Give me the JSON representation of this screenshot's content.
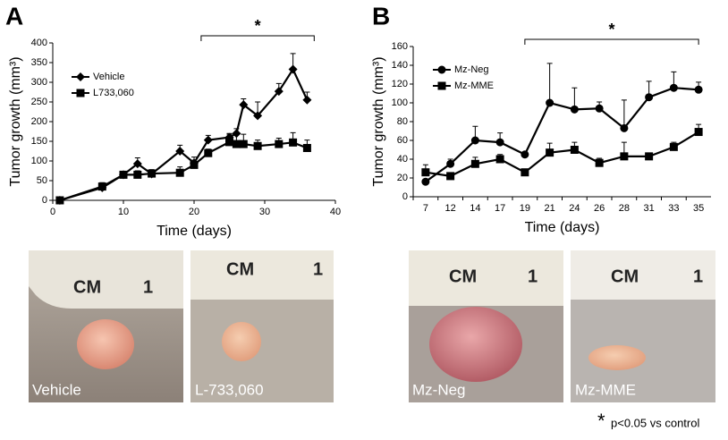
{
  "chart_data": [
    {
      "type": "line",
      "panel": "A",
      "x_label": "Time (days)",
      "y_label": "Tumor growth (mm³)",
      "x": [
        1,
        7,
        10,
        12,
        14,
        18,
        20,
        22,
        25,
        26,
        27,
        29,
        32,
        34,
        36
      ],
      "series": [
        {
          "name": "Vehicle",
          "color": "#000000",
          "marker": "diamond",
          "values": [
            0,
            32,
            65,
            93,
            67,
            125,
            95,
            153,
            160,
            170,
            243,
            215,
            277,
            333,
            255
          ],
          "errors": [
            0,
            10,
            8,
            15,
            10,
            15,
            15,
            12,
            10,
            12,
            15,
            35,
            20,
            40,
            20
          ]
        },
        {
          "name": "L733,060",
          "color": "#000000",
          "marker": "square",
          "values": [
            0,
            35,
            65,
            65,
            68,
            70,
            90,
            120,
            148,
            143,
            143,
            138,
            143,
            147,
            133
          ],
          "errors": [
            0,
            10,
            5,
            10,
            10,
            15,
            12,
            10,
            20,
            25,
            25,
            15,
            15,
            25,
            20
          ]
        }
      ],
      "xlim": [
        0,
        40
      ],
      "xticks": [
        0,
        10,
        20,
        30,
        40
      ],
      "ylim": [
        0,
        400
      ],
      "yticks": [
        0,
        50,
        100,
        150,
        200,
        250,
        300,
        350,
        400
      ],
      "significance": {
        "label": "*",
        "from": 21,
        "to": 37
      }
    },
    {
      "type": "line",
      "panel": "B",
      "x_label": "Time (days)",
      "y_label": "Tumor growth (mm³)",
      "categories": [
        "7",
        "12",
        "14",
        "17",
        "19",
        "21",
        "24",
        "26",
        "28",
        "31",
        "33",
        "35"
      ],
      "series": [
        {
          "name": "Mz-Neg",
          "color": "#000000",
          "marker": "circle",
          "values": [
            16,
            35,
            60,
            58,
            45,
            100,
            93,
            94,
            73,
            106,
            116,
            114
          ],
          "errors": [
            0,
            5,
            15,
            10,
            0,
            42,
            23,
            7,
            30,
            17,
            17,
            8
          ]
        },
        {
          "name": "Mz-MME",
          "color": "#000000",
          "marker": "square",
          "values": [
            26,
            22,
            35,
            40,
            26,
            47,
            50,
            36,
            43,
            43,
            53,
            69
          ],
          "errors": [
            8,
            3,
            7,
            5,
            3,
            10,
            8,
            5,
            15,
            3,
            5,
            8
          ]
        }
      ],
      "ylim": [
        0,
        160
      ],
      "yticks": [
        0,
        20,
        40,
        60,
        80,
        100,
        120,
        140,
        160
      ],
      "significance": {
        "label": "*",
        "from": "19",
        "to": "35"
      }
    }
  ],
  "photos": [
    {
      "label": "Vehicle",
      "scale": "CM",
      "scale_mark": "1"
    },
    {
      "label": "L-733,060",
      "scale": "CM",
      "scale_mark": "1"
    },
    {
      "label": "Mz-Neg",
      "scale": "CM",
      "scale_mark": "1"
    },
    {
      "label": "Mz-MME",
      "scale": "CM",
      "scale_mark": "1"
    }
  ],
  "footnote": {
    "symbol": "*",
    "text": "p<0.05 vs control"
  }
}
